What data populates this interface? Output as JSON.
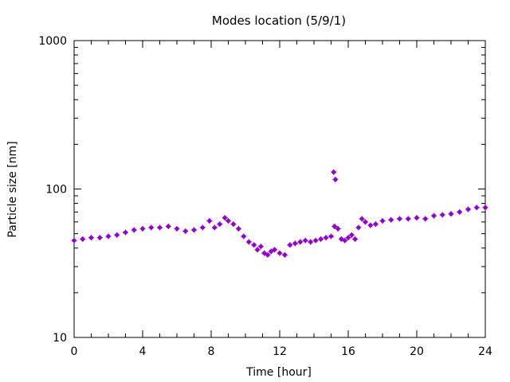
{
  "chart_data": {
    "type": "scatter",
    "title": "Modes location (5/9/1)",
    "xlabel": "Time [hour]",
    "ylabel": "Particle size [nm]",
    "xlim": [
      0,
      24
    ],
    "ylim": [
      10,
      1000
    ],
    "yscale": "log",
    "grid": false,
    "legend": "none",
    "x_ticks": [
      0,
      4,
      8,
      12,
      16,
      20,
      24
    ],
    "x_tick_labels": [
      "0",
      "4",
      "8",
      "12",
      "16",
      "20",
      "24"
    ],
    "y_ticks": [
      10,
      100,
      1000
    ],
    "y_tick_labels": [
      "10",
      "100",
      "1000"
    ],
    "point_color": "#9400d3",
    "series": [
      {
        "x": [
          0.0,
          0.5,
          1.0,
          1.5,
          2.0,
          2.5,
          3.0,
          3.5,
          4.0,
          4.5,
          5.0,
          5.5,
          6.0,
          6.5,
          7.0,
          7.5,
          7.9,
          8.2,
          8.5,
          8.8,
          9.0,
          9.3,
          9.6,
          9.9,
          10.2,
          10.5,
          10.7,
          10.9,
          11.1,
          11.3,
          11.5,
          11.7,
          12.0,
          12.3,
          12.6,
          12.9,
          13.2,
          13.5,
          13.8,
          14.1,
          14.4,
          14.7,
          15.0,
          15.2,
          15.4,
          15.6,
          15.8,
          16.0,
          16.2,
          16.4,
          16.6,
          16.8,
          17.0,
          17.3,
          17.6,
          18.0,
          18.5,
          19.0,
          19.5,
          20.0,
          20.5,
          21.0,
          21.5,
          22.0,
          22.5,
          23.0,
          23.5,
          24.0,
          15.15,
          15.25
        ],
        "y": [
          45,
          46,
          47,
          47,
          48,
          49,
          51,
          53,
          54,
          55,
          55,
          56,
          54,
          52,
          53,
          55,
          61,
          55,
          58,
          64,
          61,
          58,
          54,
          48,
          44,
          42,
          39,
          41,
          37,
          36,
          38,
          39,
          37,
          36,
          42,
          43,
          44,
          45,
          44,
          45,
          46,
          47,
          48,
          56,
          54,
          46,
          45,
          47,
          49,
          46,
          55,
          63,
          60,
          57,
          58,
          61,
          62,
          63,
          63,
          64,
          63,
          66,
          67,
          68,
          70,
          73,
          75,
          75,
          130,
          116
        ]
      }
    ]
  }
}
